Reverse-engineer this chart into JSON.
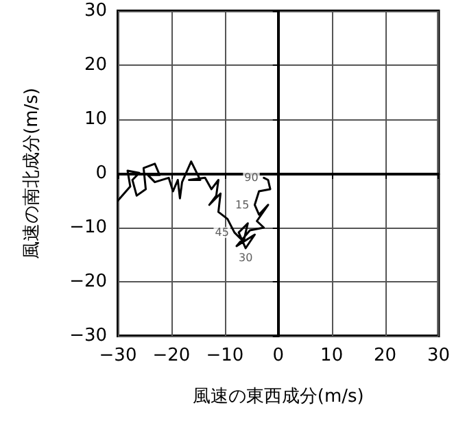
{
  "chart_data": {
    "type": "line",
    "xlabel": "風速の東西成分(m/s)",
    "ylabel": "風速の南北成分(m/s)",
    "xlim": [
      -30,
      30
    ],
    "ylim": [
      -30,
      30
    ],
    "xticks": [
      -30,
      -20,
      -10,
      0,
      10,
      20,
      30
    ],
    "yticks": [
      -30,
      -20,
      -10,
      0,
      10,
      20,
      30
    ],
    "grid": true,
    "marker": "none",
    "line_style": "solid",
    "series": [
      {
        "color": "#000000",
        "x": [
          -30,
          -27.7,
          -28.2,
          -26,
          -27.3,
          -26.5,
          -24.8,
          -25.2,
          -23.1,
          -22.2,
          -24.4,
          -23.1,
          -20.5,
          -19.7,
          -18.8,
          -18.4,
          -18,
          -16.3,
          -14.6,
          -16.7,
          -13.7,
          -12.5,
          -11.2,
          -11.6,
          -12.9,
          -10.8,
          -11.2,
          -9.5,
          -8.2,
          -6.5,
          -5.7,
          -7.4,
          -6.1,
          -4.4,
          -7.8,
          -5.3,
          -2.7,
          -4,
          -1.9,
          -3.6,
          -4.4,
          -3.6,
          -1.5,
          -1.9,
          -2.7
        ],
        "values": [
          -5,
          -2.4,
          0.5,
          0.1,
          -1.2,
          -4.1,
          -2.9,
          1,
          1.8,
          -0.3,
          -0.3,
          -1.6,
          -0.8,
          -3.3,
          -1.2,
          -4.6,
          -1.6,
          2.2,
          -1.2,
          -1.2,
          -0.8,
          -2.9,
          -1.2,
          -4.1,
          -5.8,
          -3.7,
          -7.1,
          -8.4,
          -10.9,
          -12.6,
          -9.2,
          -10.9,
          -13.8,
          -11.3,
          -13.4,
          -10.5,
          -10,
          -8.8,
          -5.8,
          -7.6,
          -5.8,
          -3.3,
          -2.9,
          -1.2,
          -0.8
        ]
      }
    ],
    "annotations": [
      {
        "text": "90",
        "x": -2.7,
        "y": -0.8
      },
      {
        "text": "15",
        "x": -4.4,
        "y": -5.8
      },
      {
        "text": "45",
        "x": -8.2,
        "y": -10.9
      },
      {
        "text": "30",
        "x": -6.1,
        "y": -13.8
      }
    ]
  }
}
